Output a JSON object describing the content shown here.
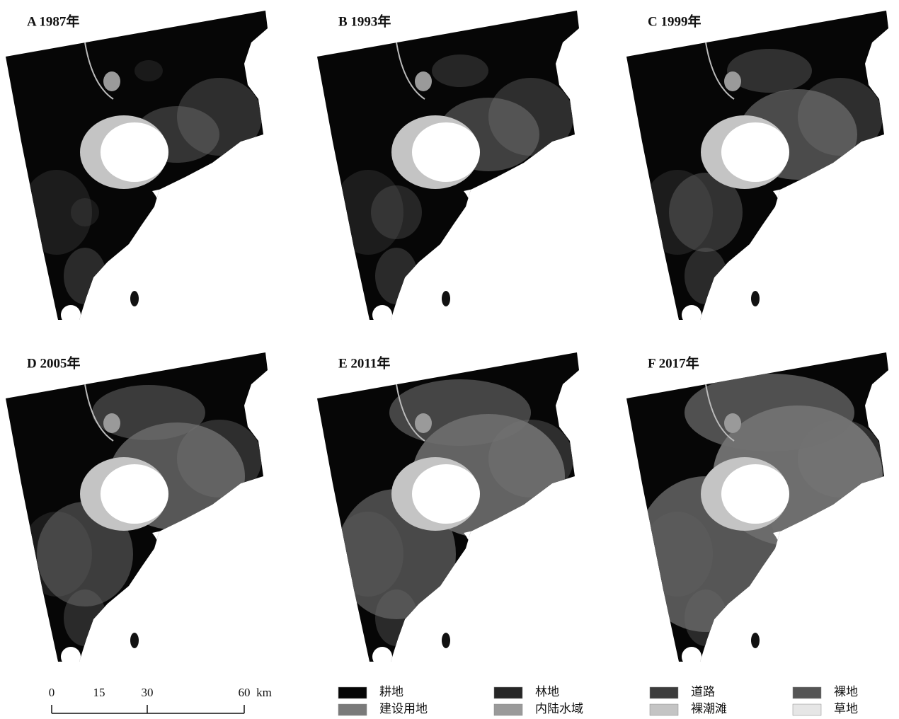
{
  "panels": [
    {
      "label": "A 1987年"
    },
    {
      "label": "B 1993年"
    },
    {
      "label": "C 1999年"
    },
    {
      "label": "D 2005年"
    },
    {
      "label": "E 2011年"
    },
    {
      "label": "F 2017年"
    }
  ],
  "scale_bar": {
    "ticks": [
      "0",
      "15",
      "30",
      "60"
    ],
    "unit": "km"
  },
  "legend": [
    {
      "name": "耕地",
      "color": "#050505"
    },
    {
      "name": "林地",
      "color": "#262626"
    },
    {
      "name": "道路",
      "color": "#3c3c3c"
    },
    {
      "name": "裸地",
      "color": "#555555"
    },
    {
      "name": "建设用地",
      "color": "#7a7a7a"
    },
    {
      "name": "内陆水域",
      "color": "#9a9a9a"
    },
    {
      "name": "裸潮滩",
      "color": "#c4c4c4"
    },
    {
      "name": "草地",
      "color": "#e6e6e6"
    }
  ]
}
